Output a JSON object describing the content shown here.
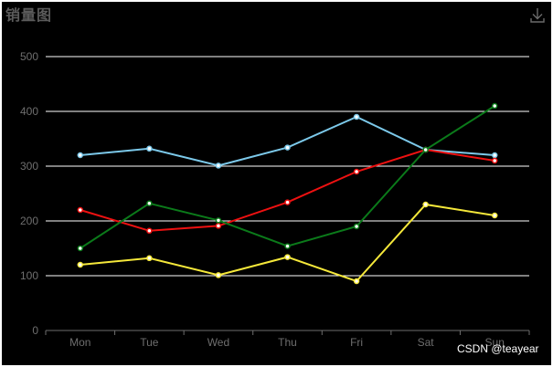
{
  "title": "销量图",
  "toolbox": {
    "icon": "download-icon"
  },
  "watermark": "CSDN @teayear",
  "colors": {
    "background": "#000000",
    "grid": "#ffffff",
    "axis_text": "#6e6e6e",
    "title": "#5b5b5b"
  },
  "chart_data": {
    "type": "line",
    "title": "销量图",
    "categories": [
      "Mon",
      "Tue",
      "Wed",
      "Thu",
      "Fri",
      "Sat",
      "Sun"
    ],
    "ylim": [
      0,
      500
    ],
    "yticks": [
      0,
      100,
      200,
      300,
      400,
      500
    ],
    "grid": true,
    "series": [
      {
        "color": "#7cc9ea",
        "values": [
          320,
          332,
          301,
          334,
          390,
          330,
          320
        ]
      },
      {
        "color": "#ee1111",
        "values": [
          220,
          182,
          191,
          234,
          290,
          330,
          310
        ]
      },
      {
        "color": "#0b7a1a",
        "values": [
          150,
          232,
          201,
          154,
          190,
          330,
          410
        ]
      },
      {
        "color": "#f5e83a",
        "values": [
          120,
          132,
          101,
          134,
          90,
          230,
          210
        ]
      }
    ]
  }
}
